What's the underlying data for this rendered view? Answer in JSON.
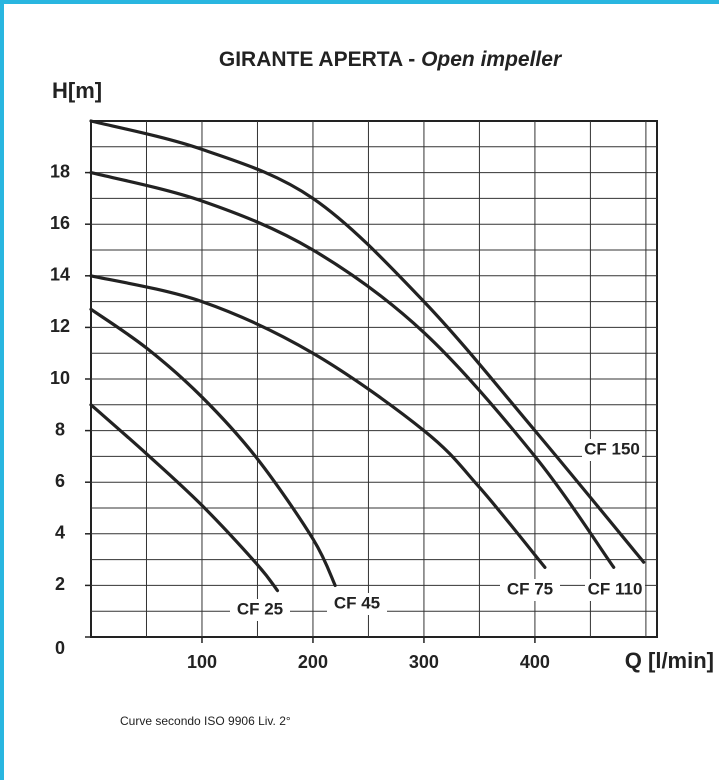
{
  "chart_data": {
    "type": "line",
    "title": "GIRANTE APERTA - ",
    "title_italic": "Open impeller",
    "y_label": "H[m]",
    "x_label": "Q [l/min]",
    "footnote": "Curve secondo ISO 9906 Liv. 2°",
    "xlim": [
      0,
      510
    ],
    "ylim": [
      0,
      20
    ],
    "xticks": [
      100,
      200,
      300,
      400
    ],
    "yticks": [
      0,
      2,
      4,
      6,
      8,
      10,
      12,
      14,
      16,
      18
    ],
    "xgrid": [
      50,
      100,
      150,
      200,
      250,
      300,
      350,
      400,
      450,
      500
    ],
    "ygrid": [
      1,
      2,
      3,
      4,
      5,
      6,
      7,
      8,
      9,
      10,
      11,
      12,
      13,
      14,
      15,
      16,
      17,
      18,
      19
    ],
    "grid": true,
    "color": "#222222",
    "series": [
      {
        "name": "CF 25",
        "x": [
          0,
          50,
          100,
          150,
          168
        ],
        "values": [
          9,
          7.1,
          5.1,
          2.8,
          1.8
        ]
      },
      {
        "name": "CF 45",
        "x": [
          0,
          50,
          100,
          150,
          200,
          220
        ],
        "values": [
          12.7,
          11.2,
          9.3,
          6.9,
          3.8,
          2
        ]
      },
      {
        "name": "CF 75",
        "x": [
          0,
          100,
          200,
          300,
          350,
          409
        ],
        "values": [
          14,
          13,
          11,
          8,
          5.8,
          2.7
        ]
      },
      {
        "name": "CF 110",
        "x": [
          0,
          100,
          200,
          300,
          400,
          471
        ],
        "values": [
          18,
          16.9,
          15,
          11.8,
          7,
          2.7
        ]
      },
      {
        "name": "CF 150",
        "x": [
          0,
          100,
          200,
          300,
          400,
          498
        ],
        "values": [
          20,
          18.9,
          17,
          13,
          8,
          2.9
        ]
      }
    ]
  }
}
